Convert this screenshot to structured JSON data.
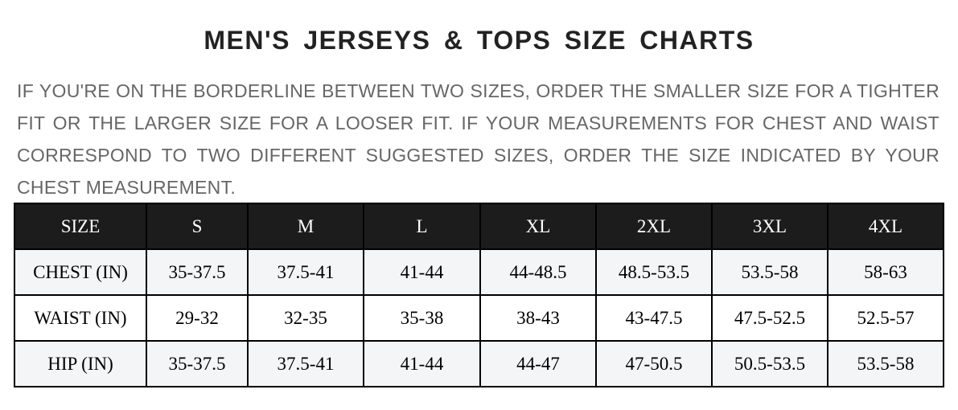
{
  "title": "MEN'S JERSEYS & TOPS SIZE CHARTS",
  "description": "IF YOU'RE ON THE BORDERLINE BETWEEN TWO SIZES, ORDER THE SMALLER SIZE FOR A TIGHTER FIT OR THE LARGER SIZE FOR A LOOSER FIT. IF YOUR MEASUREMENTS FOR CHEST AND WAIST CORRESPOND TO TWO DIFFERENT SUGGESTED SIZES, ORDER THE SIZE INDICATED BY YOUR CHEST MEASUREMENT.",
  "table": {
    "headers": [
      "SIZE",
      "S",
      "M",
      "L",
      "XL",
      "2XL",
      "3XL",
      "4XL"
    ],
    "rows": [
      [
        "CHEST (IN)",
        "35-37.5",
        "37.5-41",
        "41-44",
        "44-48.5",
        "48.5-53.5",
        "53.5-58",
        "58-63"
      ],
      [
        "WAIST (IN)",
        "29-32",
        "32-35",
        "35-38",
        "38-43",
        "43-47.5",
        "47.5-52.5",
        "52.5-57"
      ],
      [
        "HIP (IN)",
        "35-37.5",
        "37.5-41",
        "41-44",
        "44-47",
        "47-50.5",
        "50.5-53.5",
        "53.5-58"
      ]
    ]
  },
  "colors": {
    "header_bg": "#1c1c1c",
    "row_alt_bg": "#f4f5f7",
    "text_gray": "#666666"
  }
}
